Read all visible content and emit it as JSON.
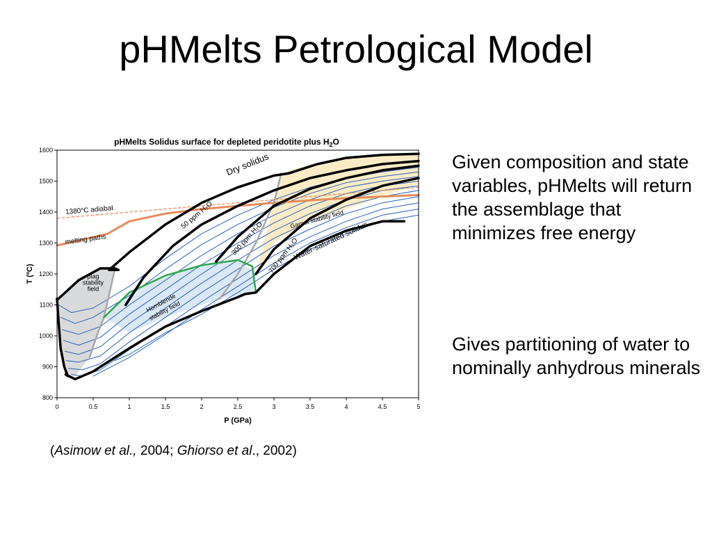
{
  "slide": {
    "title": "pHMelts Petrological Model",
    "bullets": [
      "Given composition and state variables, pHMelts will return the assemblage that minimizes free energy",
      "Gives partitioning of water to nominally anhydrous minerals"
    ],
    "citation": {
      "open": "(",
      "author1": "Asimow et al.,",
      "year1": " 2004; ",
      "author2": "Ghiorso et al",
      "year2": "., 2002)"
    }
  },
  "chart_data": {
    "type": "line",
    "title": "pHMelts Solidus surface for depleted peridotite plus H",
    "title_sub": "2",
    "title_end": "O",
    "xlabel": "P (GPa)",
    "ylabel": "T (ºC)",
    "xlim": [
      0,
      5
    ],
    "ylim": [
      800,
      1600
    ],
    "xticks": [
      0,
      0.5,
      1,
      1.5,
      2,
      2.5,
      3,
      3.5,
      4,
      4.5,
      5
    ],
    "xtick_labels": [
      "0",
      "0.5",
      "1",
      "1.5",
      "2",
      "2.5",
      "3",
      "3.5",
      "4",
      "4.5",
      "5"
    ],
    "yticks": [
      800,
      900,
      1000,
      1100,
      1200,
      1300,
      1400,
      1500,
      1600
    ],
    "ytick_labels": [
      "800",
      "900",
      "1000",
      "1100",
      "1200",
      "1300",
      "1400",
      "1500",
      "1600"
    ],
    "colors": {
      "adiabat": "#e88a5a",
      "contour": "#2563b8",
      "garnet_field": "#fbecc6",
      "hornblende_field": "#dbe9f4",
      "plag_field": "#d9dadb",
      "boundary_gray": "#a8a8a8",
      "green_boundary": "#2ca84a"
    },
    "regions": [
      {
        "name": "plag-field",
        "points": [
          [
            0,
            1120
          ],
          [
            0.3,
            1180
          ],
          [
            0.6,
            1218
          ],
          [
            0.8,
            1215
          ],
          [
            0.65,
            1060
          ],
          [
            0.45,
            930
          ],
          [
            0.25,
            870
          ],
          [
            0.1,
            880
          ],
          [
            0,
            1120
          ]
        ]
      },
      {
        "name": "hornblende-field",
        "points": [
          [
            0.65,
            1060
          ],
          [
            1,
            1140
          ],
          [
            1.5,
            1195
          ],
          [
            2,
            1228
          ],
          [
            2.5,
            1245
          ],
          [
            2.75,
            1200
          ],
          [
            2.7,
            1140
          ],
          [
            2.25,
            1120
          ],
          [
            1.5,
            1060
          ],
          [
            1,
            1010
          ],
          [
            0.65,
            1060
          ]
        ]
      },
      {
        "name": "garnet-field",
        "points": [
          [
            3.1,
            1525
          ],
          [
            3.5,
            1555
          ],
          [
            4,
            1575
          ],
          [
            4.5,
            1585
          ],
          [
            5,
            1588
          ],
          [
            5,
            1490
          ],
          [
            4.5,
            1450
          ],
          [
            4,
            1410
          ],
          [
            3.5,
            1370
          ],
          [
            3,
            1300
          ],
          [
            2.75,
            1200
          ],
          [
            3.1,
            1525
          ]
        ]
      }
    ],
    "series": [
      {
        "name": "Dry solidus",
        "style": "thick-black",
        "x": [
          0.72,
          1,
          1.5,
          2,
          2.5,
          3,
          3.2,
          3.6,
          4,
          4.5,
          5
        ],
        "y": [
          1213,
          1270,
          1360,
          1430,
          1480,
          1518,
          1525,
          1555,
          1575,
          1585,
          1588
        ]
      },
      {
        "name": "50 ppm H2O",
        "style": "thick-black",
        "x": [
          0.95,
          1.2,
          1.6,
          2,
          2.5,
          3,
          3.5,
          4,
          4.5,
          5
        ],
        "y": [
          1100,
          1190,
          1290,
          1360,
          1420,
          1470,
          1510,
          1535,
          1555,
          1565
        ]
      },
      {
        "name": "300 ppm H2O",
        "style": "thick-black",
        "x": [
          2.2,
          2.5,
          3,
          3.5,
          4,
          4.5,
          5
        ],
        "y": [
          1240,
          1320,
          1420,
          1475,
          1510,
          1535,
          1550
        ]
      },
      {
        "name": "700 ppm H2O",
        "style": "thick-black",
        "x": [
          2.75,
          3,
          3.5,
          4,
          4.5,
          5
        ],
        "y": [
          1200,
          1280,
          1380,
          1440,
          1485,
          1510
        ]
      },
      {
        "name": "Water-saturated solidus",
        "style": "thick-black",
        "x": [
          0.12,
          0.25,
          0.5,
          1,
          1.5,
          2,
          2.5,
          2.6,
          2.75,
          3,
          3.5,
          4,
          4.5,
          4.8
        ],
        "y": [
          875,
          860,
          885,
          960,
          1030,
          1080,
          1125,
          1135,
          1140,
          1200,
          1290,
          1340,
          1370,
          1370
        ]
      },
      {
        "name": "Plag boundary",
        "style": "thick-black",
        "x": [
          0,
          0.02,
          0.3,
          0.6,
          0.8,
          0.85,
          0.72
        ],
        "y": [
          1120,
          1120,
          1180,
          1218,
          1218,
          1213,
          1213
        ]
      },
      {
        "name": "Low-P edge",
        "style": "thick-black",
        "x": [
          0,
          0.02,
          0.05,
          0.1,
          0.15,
          0.12
        ],
        "y": [
          1120,
          1050,
          960,
          900,
          870,
          875
        ]
      },
      {
        "name": "1380°C adiabat",
        "style": "adiabat",
        "x": [
          0,
          1,
          2,
          3,
          4,
          5
        ],
        "y": [
          1380,
          1400,
          1420,
          1440,
          1460,
          1480
        ]
      },
      {
        "name": "melting paths",
        "style": "adiabat-thick",
        "x": [
          0,
          0.7,
          1,
          1.5,
          2,
          2.5,
          3,
          3.5,
          4,
          4.5,
          5
        ],
        "y": [
          1292,
          1330,
          1370,
          1395,
          1410,
          1420,
          1430,
          1438,
          1445,
          1450,
          1455
        ]
      },
      {
        "name": "Garnet boundary",
        "style": "gray",
        "x": [
          2.25,
          2.5,
          2.75,
          3,
          3.1
        ],
        "y": [
          1120,
          1200,
          1300,
          1430,
          1525
        ]
      },
      {
        "name": "Plag-out boundary",
        "style": "gray",
        "x": [
          0.45,
          0.55,
          0.65,
          0.8
        ],
        "y": [
          930,
          1000,
          1060,
          1215
        ]
      },
      {
        "name": "Hornblende boundary",
        "style": "green",
        "x": [
          0.65,
          1,
          1.5,
          2,
          2.5,
          2.7,
          2.75
        ],
        "y": [
          1060,
          1140,
          1195,
          1228,
          1245,
          1225,
          1140
        ]
      },
      {
        "name": "c1",
        "style": "contour",
        "x": [
          0.02,
          0.2,
          0.5,
          1,
          1.5,
          2,
          2.5,
          3,
          3.5,
          4,
          4.5,
          5
        ],
        "y": [
          1100,
          1075,
          1090,
          1160,
          1250,
          1330,
          1390,
          1440,
          1480,
          1510,
          1530,
          1545
        ]
      },
      {
        "name": "c2",
        "style": "contour",
        "x": [
          0.05,
          0.25,
          0.5,
          1,
          1.5,
          2,
          2.5,
          3,
          3.5,
          4,
          4.5,
          5
        ],
        "y": [
          1060,
          1040,
          1060,
          1130,
          1215,
          1295,
          1360,
          1415,
          1460,
          1495,
          1515,
          1530
        ]
      },
      {
        "name": "c3",
        "style": "contour",
        "x": [
          0.07,
          0.3,
          0.6,
          1,
          1.5,
          2,
          2.5,
          3,
          3.5,
          4,
          4.5,
          5
        ],
        "y": [
          1020,
          1005,
          1030,
          1100,
          1180,
          1260,
          1330,
          1390,
          1440,
          1480,
          1500,
          1515
        ]
      },
      {
        "name": "c4",
        "style": "contour",
        "x": [
          0.09,
          0.3,
          0.6,
          1,
          1.5,
          2,
          2.5,
          3,
          3.5,
          4,
          4.5,
          5
        ],
        "y": [
          985,
          970,
          995,
          1070,
          1150,
          1230,
          1300,
          1365,
          1420,
          1460,
          1485,
          1500
        ]
      },
      {
        "name": "c5",
        "style": "contour",
        "x": [
          0.11,
          0.3,
          0.6,
          1,
          1.5,
          2,
          2.5,
          3,
          3.5,
          4,
          4.5,
          5
        ],
        "y": [
          950,
          940,
          965,
          1040,
          1120,
          1200,
          1275,
          1340,
          1395,
          1440,
          1470,
          1485
        ]
      },
      {
        "name": "c6",
        "style": "contour",
        "x": [
          0.13,
          0.3,
          0.6,
          1,
          1.5,
          2,
          2.5,
          3,
          3.5,
          4,
          4.5,
          5
        ],
        "y": [
          920,
          915,
          935,
          1010,
          1090,
          1170,
          1245,
          1315,
          1370,
          1420,
          1450,
          1470
        ]
      },
      {
        "name": "c7",
        "style": "contour",
        "x": [
          0.16,
          0.35,
          0.6,
          1,
          1.5,
          2,
          2.5,
          3,
          3.5,
          4,
          4.5,
          5
        ],
        "y": [
          895,
          890,
          910,
          980,
          1060,
          1140,
          1215,
          1290,
          1345,
          1395,
          1430,
          1450
        ]
      },
      {
        "name": "c8",
        "style": "contour",
        "x": [
          0.2,
          0.35,
          0.6,
          1,
          1.5,
          2,
          2.5,
          3,
          3.5,
          4,
          4.5,
          5
        ],
        "y": [
          875,
          870,
          890,
          955,
          1030,
          1110,
          1185,
          1260,
          1320,
          1370,
          1410,
          1430
        ]
      },
      {
        "name": "c9",
        "style": "contour",
        "x": [
          0.5,
          1,
          1.5,
          2,
          2.5,
          3,
          3.5,
          4,
          4.5,
          5
        ],
        "y": [
          870,
          930,
          1005,
          1085,
          1160,
          1235,
          1300,
          1350,
          1390,
          1410
        ]
      },
      {
        "name": "c10",
        "style": "contour",
        "x": [
          0.8,
          1,
          1.5,
          2,
          2.5,
          3,
          3.5,
          4,
          4.5,
          5
        ],
        "y": [
          920,
          940,
          1010,
          1070,
          1140,
          1215,
          1280,
          1330,
          1370,
          1390
        ]
      }
    ],
    "labels": [
      {
        "text": "Dry solidus",
        "x": 2.65,
        "y": 1545,
        "angle": -22,
        "size": 13
      },
      {
        "text": "1380°C adiabat",
        "x": 0.45,
        "y": 1400,
        "angle": -5,
        "size": 10
      },
      {
        "text": "melting paths",
        "x": 0.4,
        "y": 1305,
        "angle": -8,
        "size": 10
      },
      {
        "text": "50 ppm H₂O",
        "x": 1.95,
        "y": 1385,
        "angle": -40,
        "size": 10
      },
      {
        "text": "300 ppm H₂O",
        "x": 2.65,
        "y": 1310,
        "angle": -48,
        "size": 10
      },
      {
        "text": "700 ppm H₂O",
        "x": 3.15,
        "y": 1255,
        "angle": -52,
        "size": 10
      },
      {
        "text": "Garnet stability field",
        "x": 3.6,
        "y": 1370,
        "angle": -15,
        "size": 9
      },
      {
        "text": "Water-saturated solidus",
        "x": 3.8,
        "y": 1300,
        "angle": -25,
        "size": 11
      },
      {
        "text": "plag",
        "x": 0.5,
        "y": 1185,
        "angle": 0,
        "size": 9
      },
      {
        "text": "stability",
        "x": 0.5,
        "y": 1165,
        "angle": 0,
        "size": 9
      },
      {
        "text": "field",
        "x": 0.5,
        "y": 1145,
        "angle": 0,
        "size": 9
      },
      {
        "text": "Hornblende",
        "x": 1.45,
        "y": 1100,
        "angle": -28,
        "size": 9
      },
      {
        "text": "stability field",
        "x": 1.5,
        "y": 1075,
        "angle": -28,
        "size": 9
      }
    ]
  }
}
